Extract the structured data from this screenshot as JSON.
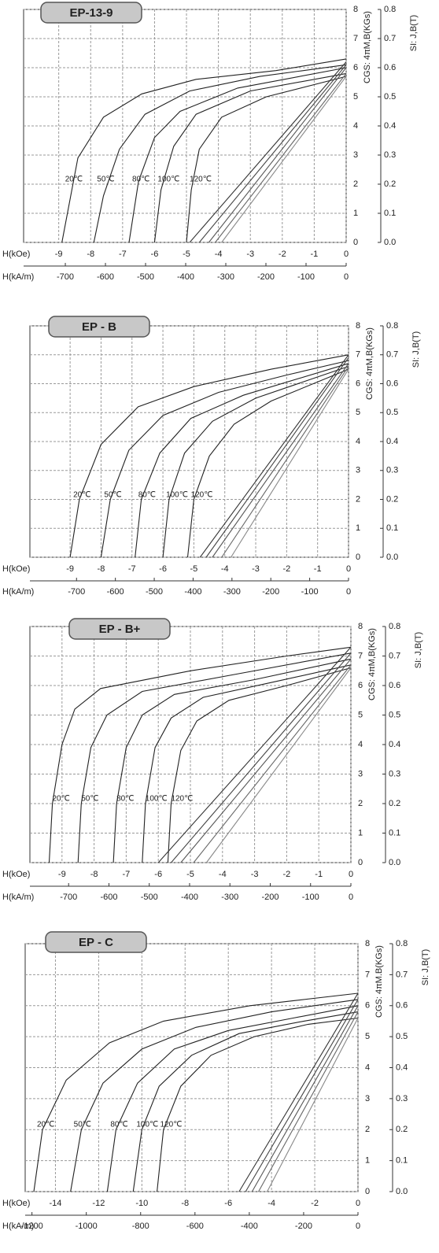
{
  "chart_data": [
    {
      "type": "line",
      "title": "EP-13-9",
      "x_label": "H(kOe)",
      "x2_label": "H(kA/m)",
      "y_label": "CGS: 4πM,B(KGs)",
      "y2_label": "SI: J,B(T)",
      "xlim": [
        -10.1,
        0
      ],
      "xticks": [
        -9,
        -8,
        -7,
        -6,
        -5,
        -4,
        -3,
        -2,
        -1,
        0
      ],
      "x2lim": [
        -804,
        0
      ],
      "x2ticks": [
        -700,
        -600,
        -500,
        -400,
        -300,
        -200,
        -100,
        0
      ],
      "ylim": [
        0,
        8
      ],
      "yticks": [
        0,
        1,
        2,
        3,
        4,
        5,
        6,
        7,
        8
      ],
      "y2lim": [
        0,
        0.8
      ],
      "y2ticks": [
        {
          "value": 0,
          "label": "0.0"
        },
        0.1,
        0.2,
        0.3,
        0.4,
        0.5,
        0.6,
        0.7,
        0.8
      ],
      "grid": true,
      "series": [
        {
          "name": "20℃",
          "color": "#222",
          "x": [
            -8.9,
            -8.4,
            -7.6,
            -6.4,
            -4.7,
            -2.2,
            0
          ],
          "values": [
            0,
            2.9,
            4.3,
            5.1,
            5.6,
            5.9,
            6.3
          ]
        },
        {
          "name": "50℃",
          "color": "#222",
          "x": [
            -7.9,
            -7.6,
            -7.1,
            -6.3,
            -4.9,
            -2.7,
            0
          ],
          "values": [
            0,
            1.6,
            3.2,
            4.4,
            5.2,
            5.7,
            6.1
          ]
        },
        {
          "name": "80℃",
          "color": "#222",
          "x": [
            -6.8,
            -6.5,
            -6.0,
            -5.2,
            -3.4,
            0
          ],
          "values": [
            0,
            2.1,
            3.6,
            4.5,
            5.3,
            6.0
          ]
        },
        {
          "name": "100℃",
          "color": "#222",
          "x": [
            -6.0,
            -5.8,
            -5.4,
            -4.7,
            -3.0,
            0
          ],
          "values": [
            0,
            1.8,
            3.3,
            4.4,
            5.2,
            5.8
          ]
        },
        {
          "name": "120℃",
          "color": "#222",
          "x": [
            -5.0,
            -4.85,
            -4.6,
            -3.9,
            -2.5,
            0
          ],
          "values": [
            0,
            1.8,
            3.2,
            4.3,
            5.0,
            5.7
          ]
        },
        {
          "color": "#333",
          "x": [
            -4.9,
            0
          ],
          "values": [
            0,
            6.2
          ]
        },
        {
          "color": "#444",
          "x": [
            -4.6,
            0
          ],
          "values": [
            0,
            6.1
          ]
        },
        {
          "color": "#555",
          "x": [
            -4.3,
            0
          ],
          "values": [
            0,
            6.0
          ]
        },
        {
          "color": "#666",
          "x": [
            -4.1,
            0
          ],
          "values": [
            0,
            5.8
          ]
        },
        {
          "color": "#888",
          "x": [
            -3.9,
            0
          ],
          "values": [
            0,
            5.7
          ]
        }
      ]
    },
    {
      "type": "line",
      "title": "EP - B",
      "x_label": "H(kOe)",
      "x2_label": "H(kA/m)",
      "y_label": "CGS: 4πM,B(KGs)",
      "y2_label": "SI: J,B(T)",
      "xlim": [
        -10.3,
        0
      ],
      "xticks": [
        -9,
        -8,
        -7,
        -6,
        -5,
        -4,
        -3,
        -2,
        -1,
        0
      ],
      "x2lim": [
        -820,
        0
      ],
      "x2ticks": [
        -700,
        -600,
        -500,
        -400,
        -300,
        -200,
        -100,
        0
      ],
      "ylim": [
        0,
        8
      ],
      "yticks": [
        0,
        1,
        2,
        3,
        4,
        5,
        6,
        7,
        8
      ],
      "y2lim": [
        0,
        0.8
      ],
      "y2ticks": [
        {
          "value": 0,
          "label": "0.0"
        },
        0.1,
        0.2,
        0.3,
        0.4,
        0.5,
        0.6,
        0.7,
        0.8
      ],
      "grid": true,
      "series": [
        {
          "name": "20℃",
          "color": "#222",
          "x": [
            -9.0,
            -8.7,
            -8.0,
            -6.8,
            -5.0,
            -2.5,
            0
          ],
          "values": [
            0,
            2.0,
            3.9,
            5.2,
            5.9,
            6.5,
            7.0
          ]
        },
        {
          "name": "50℃",
          "color": "#222",
          "x": [
            -8.0,
            -7.7,
            -7.1,
            -6.0,
            -4.2,
            -2.0,
            0
          ],
          "values": [
            0,
            2.0,
            3.7,
            4.9,
            5.7,
            6.3,
            6.8
          ]
        },
        {
          "name": "80℃",
          "color": "#222",
          "x": [
            -6.9,
            -6.7,
            -6.1,
            -5.1,
            -3.4,
            0
          ],
          "values": [
            0,
            2.0,
            3.6,
            4.8,
            5.6,
            6.7
          ]
        },
        {
          "name": "100℃",
          "color": "#222",
          "x": [
            -6.0,
            -5.8,
            -5.3,
            -4.4,
            -3.0,
            0
          ],
          "values": [
            0,
            2.0,
            3.6,
            4.7,
            5.5,
            6.6
          ]
        },
        {
          "name": "120℃",
          "color": "#222",
          "x": [
            -5.2,
            -5.0,
            -4.5,
            -3.7,
            -2.5,
            0
          ],
          "values": [
            0,
            2.0,
            3.5,
            4.6,
            5.4,
            6.5
          ]
        },
        {
          "color": "#333",
          "x": [
            -4.8,
            0
          ],
          "values": [
            0,
            7.0
          ]
        },
        {
          "color": "#444",
          "x": [
            -4.6,
            0
          ],
          "values": [
            0,
            6.9
          ]
        },
        {
          "color": "#555",
          "x": [
            -4.4,
            0
          ],
          "values": [
            0,
            6.7
          ]
        },
        {
          "color": "#666",
          "x": [
            -4.1,
            0
          ],
          "values": [
            0,
            6.6
          ]
        },
        {
          "color": "#888",
          "x": [
            -3.8,
            0
          ],
          "values": [
            0,
            6.5
          ]
        }
      ]
    },
    {
      "type": "line",
      "title": "EP - B+",
      "x_label": "H(kOe)",
      "x2_label": "H(kA/m)",
      "y_label": "CGS: 4πM,B(KGs)",
      "y2_label": "SI: J,B(T)",
      "xlim": [
        -10,
        0
      ],
      "xticks": [
        -9,
        -8,
        -7,
        -6,
        -5,
        -4,
        -3,
        -2,
        -1,
        0
      ],
      "x2lim": [
        -796,
        0
      ],
      "x2ticks": [
        -700,
        -600,
        -500,
        -400,
        -300,
        -200,
        -100,
        0
      ],
      "ylim": [
        0,
        8
      ],
      "yticks": [
        0,
        1,
        2,
        3,
        4,
        5,
        6,
        7,
        8
      ],
      "y2lim": [
        0,
        0.8
      ],
      "y2ticks": [
        {
          "value": 0,
          "label": "0.0"
        },
        0.1,
        0.2,
        0.3,
        0.4,
        0.5,
        0.6,
        0.7,
        0.8
      ],
      "grid": true,
      "series": [
        {
          "name": "20℃",
          "color": "#222",
          "x": [
            -9.4,
            -9.3,
            -9.0,
            -8.6,
            -7.8,
            -5.0,
            -2.0,
            0
          ],
          "values": [
            0,
            2.0,
            4.0,
            5.2,
            5.9,
            6.5,
            7.0,
            7.3
          ]
        },
        {
          "name": "50℃",
          "color": "#222",
          "x": [
            -8.5,
            -8.4,
            -8.1,
            -7.6,
            -6.5,
            -3.5,
            0
          ],
          "values": [
            0,
            2.0,
            3.9,
            5.0,
            5.8,
            6.4,
            7.1
          ]
        },
        {
          "name": "80℃",
          "color": "#222",
          "x": [
            -7.4,
            -7.3,
            -7.0,
            -6.5,
            -5.5,
            -3.0,
            0
          ],
          "values": [
            0,
            2.0,
            3.9,
            5.0,
            5.7,
            6.2,
            6.9
          ]
        },
        {
          "name": "100℃",
          "color": "#222",
          "x": [
            -6.5,
            -6.4,
            -6.1,
            -5.6,
            -4.6,
            -2.5,
            0
          ],
          "values": [
            0,
            2.0,
            3.9,
            4.9,
            5.6,
            6.1,
            6.7
          ]
        },
        {
          "name": "120℃",
          "color": "#222",
          "x": [
            -5.7,
            -5.6,
            -5.3,
            -4.8,
            -3.8,
            -2.0,
            0
          ],
          "values": [
            0,
            2.0,
            3.8,
            4.8,
            5.5,
            6.0,
            6.6
          ]
        },
        {
          "color": "#333",
          "x": [
            -6.0,
            0
          ],
          "values": [
            0,
            7.3
          ]
        },
        {
          "color": "#444",
          "x": [
            -5.6,
            0
          ],
          "values": [
            0,
            7.1
          ]
        },
        {
          "color": "#555",
          "x": [
            -5.3,
            0
          ],
          "values": [
            0,
            6.9
          ]
        },
        {
          "color": "#666",
          "x": [
            -4.9,
            0
          ],
          "values": [
            0,
            6.7
          ]
        },
        {
          "color": "#888",
          "x": [
            -4.5,
            0
          ],
          "values": [
            0,
            6.6
          ]
        }
      ]
    },
    {
      "type": "line",
      "title": "EP - C",
      "x_label": "H(kOe)",
      "x2_label": "H(kA/m)",
      "y_label": "CGS: 4πM.B(KGs)",
      "y2_label": "SI: J,B(T)",
      "xlim": [
        -15.4,
        0
      ],
      "xticks": [
        -14,
        -12,
        -10,
        -8,
        -6,
        -4,
        -2,
        0
      ],
      "x2lim": [
        -1225,
        0
      ],
      "x2ticks": [
        -1200,
        -1000,
        -800,
        -600,
        -400,
        -200,
        0
      ],
      "ylim": [
        0,
        8
      ],
      "yticks": [
        0,
        1,
        2,
        3,
        4,
        5,
        6,
        7,
        8
      ],
      "y2lim": [
        0,
        0.8
      ],
      "y2ticks": [
        {
          "value": 0,
          "label": "0.0"
        },
        0.1,
        0.2,
        0.3,
        0.4,
        0.5,
        0.6,
        0.7,
        0.8
      ],
      "grid": true,
      "series": [
        {
          "name": "20℃",
          "color": "#222",
          "x": [
            -15.0,
            -14.6,
            -13.5,
            -11.5,
            -9.0,
            -5.0,
            0
          ],
          "values": [
            0,
            2.0,
            3.6,
            4.8,
            5.5,
            6.0,
            6.4
          ]
        },
        {
          "name": "50℃",
          "color": "#222",
          "x": [
            -13.3,
            -12.8,
            -11.8,
            -10.0,
            -7.5,
            -4.0,
            0
          ],
          "values": [
            0,
            2.0,
            3.5,
            4.6,
            5.3,
            5.8,
            6.2
          ]
        },
        {
          "name": "80℃",
          "color": "#222",
          "x": [
            -11.6,
            -11.2,
            -10.2,
            -8.5,
            -6.0,
            -3.0,
            0
          ],
          "values": [
            0,
            2.0,
            3.5,
            4.6,
            5.2,
            5.6,
            6.0
          ]
        },
        {
          "name": "100℃",
          "color": "#222",
          "x": [
            -10.4,
            -10.0,
            -9.2,
            -7.7,
            -5.5,
            -2.5,
            0
          ],
          "values": [
            0,
            2.0,
            3.4,
            4.4,
            5.1,
            5.5,
            5.8
          ]
        },
        {
          "name": "120℃",
          "color": "#222",
          "x": [
            -9.3,
            -9.0,
            -8.2,
            -6.8,
            -4.8,
            -2.3,
            0
          ],
          "values": [
            0,
            2.0,
            3.4,
            4.4,
            5.0,
            5.4,
            5.6
          ]
        },
        {
          "color": "#333",
          "x": [
            -5.5,
            0
          ],
          "values": [
            0,
            6.4
          ]
        },
        {
          "color": "#444",
          "x": [
            -5.2,
            0
          ],
          "values": [
            0,
            6.2
          ]
        },
        {
          "color": "#555",
          "x": [
            -4.9,
            0
          ],
          "values": [
            0,
            6.0
          ]
        },
        {
          "color": "#666",
          "x": [
            -4.6,
            0
          ],
          "values": [
            0,
            5.8
          ]
        },
        {
          "color": "#888",
          "x": [
            -4.2,
            0
          ],
          "values": [
            0,
            5.6
          ]
        }
      ]
    }
  ]
}
